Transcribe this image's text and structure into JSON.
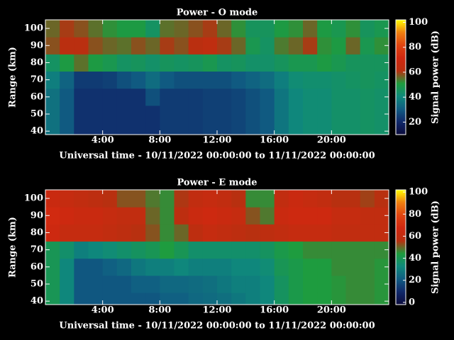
{
  "chart_data": [
    {
      "type": "heatmap",
      "title": "Power - O mode",
      "xlabel": "Universal time - 10/11/2022 00:00:00 to 11/11/2022 00:00:00",
      "ylabel": "Range (km)",
      "colorbar_label": "Signal power (dB)",
      "x": [
        0,
        1,
        2,
        3,
        4,
        5,
        6,
        7,
        8,
        9,
        10,
        11,
        12,
        13,
        14,
        15,
        16,
        17,
        18,
        19,
        20,
        21,
        22,
        23
      ],
      "y": [
        40,
        50,
        60,
        70,
        80,
        90,
        100
      ],
      "xlim": [
        0,
        24
      ],
      "ylim": [
        38,
        105
      ],
      "zlim": [
        10,
        102
      ],
      "xticks": [
        {
          "value": 4,
          "label": "4:00"
        },
        {
          "value": 8,
          "label": "8:00"
        },
        {
          "value": 12,
          "label": "12:00"
        },
        {
          "value": 16,
          "label": "16:00"
        },
        {
          "value": 20,
          "label": "20:00"
        }
      ],
      "yticks": [
        40,
        50,
        60,
        70,
        80,
        90,
        100
      ],
      "zticks": [
        20,
        40,
        60,
        80,
        100
      ],
      "colormap": [
        "#0c0c3c",
        "#10286a",
        "#105c82",
        "#0f8a7c",
        "#1e9c3e",
        "#b83010",
        "#d02810",
        "#e04410",
        "#f08010",
        "#ffff00"
      ],
      "values": [
        [
          35,
          30,
          22,
          22,
          22,
          22,
          22,
          22,
          24,
          24,
          24,
          25,
          25,
          26,
          28,
          30,
          36,
          40,
          42,
          42,
          44,
          44,
          45,
          44
        ],
        [
          35,
          30,
          22,
          22,
          22,
          22,
          22,
          22,
          24,
          24,
          24,
          25,
          25,
          26,
          28,
          30,
          36,
          40,
          42,
          42,
          44,
          44,
          45,
          44
        ],
        [
          35,
          30,
          22,
          22,
          22,
          22,
          22,
          28,
          24,
          24,
          24,
          25,
          25,
          26,
          28,
          30,
          36,
          40,
          42,
          42,
          44,
          44,
          45,
          44
        ],
        [
          38,
          32,
          24,
          24,
          25,
          28,
          30,
          34,
          30,
          28,
          28,
          28,
          28,
          30,
          32,
          34,
          38,
          42,
          43,
          43,
          44,
          45,
          46,
          45
        ],
        [
          45,
          50,
          55,
          50,
          48,
          45,
          46,
          44,
          46,
          45,
          46,
          48,
          45,
          46,
          44,
          44,
          46,
          48,
          48,
          50,
          48,
          46,
          46,
          46
        ],
        [
          58,
          62,
          62,
          58,
          56,
          55,
          58,
          56,
          60,
          58,
          62,
          64,
          60,
          56,
          48,
          45,
          54,
          56,
          60,
          52,
          50,
          56,
          48,
          52
        ],
        [
          56,
          60,
          58,
          55,
          52,
          50,
          50,
          45,
          55,
          56,
          58,
          60,
          56,
          52,
          46,
          46,
          50,
          52,
          56,
          50,
          48,
          52,
          46,
          48
        ]
      ]
    },
    {
      "type": "heatmap",
      "title": "Power - E mode",
      "xlabel": "Universal time - 10/11/2022 00:00:00 to 11/11/2022 00:00:00",
      "ylabel": "Range (km)",
      "colorbar_label": "Signal power (dB)",
      "x": [
        0,
        1,
        2,
        3,
        4,
        5,
        6,
        7,
        8,
        9,
        10,
        11,
        12,
        13,
        14,
        15,
        16,
        17,
        18,
        19,
        20,
        21,
        22,
        23
      ],
      "y": [
        40,
        50,
        60,
        70,
        80,
        90,
        100
      ],
      "xlim": [
        0,
        24
      ],
      "ylim": [
        38,
        105
      ],
      "zlim": [
        -2,
        102
      ],
      "xticks": [
        {
          "value": 4,
          "label": "4:00"
        },
        {
          "value": 8,
          "label": "8:00"
        },
        {
          "value": 12,
          "label": "12:00"
        },
        {
          "value": 16,
          "label": "16:00"
        },
        {
          "value": 20,
          "label": "20:00"
        }
      ],
      "yticks": [
        40,
        50,
        60,
        70,
        80,
        90,
        100
      ],
      "zticks": [
        0,
        20,
        40,
        60,
        80,
        100
      ],
      "colormap": [
        "#0c0c3c",
        "#10286a",
        "#105c82",
        "#0f8a7c",
        "#1e9c3e",
        "#b83010",
        "#d02810",
        "#e04410",
        "#f08010",
        "#ffff00"
      ],
      "values": [
        [
          40,
          32,
          20,
          20,
          20,
          20,
          20,
          20,
          22,
          22,
          24,
          25,
          26,
          28,
          30,
          32,
          38,
          42,
          44,
          44,
          45,
          46,
          46,
          45
        ],
        [
          40,
          32,
          20,
          20,
          20,
          20,
          22,
          22,
          24,
          24,
          25,
          26,
          28,
          30,
          30,
          32,
          38,
          42,
          44,
          44,
          45,
          46,
          46,
          45
        ],
        [
          40,
          32,
          20,
          20,
          22,
          24,
          28,
          30,
          30,
          32,
          30,
          30,
          30,
          32,
          32,
          34,
          40,
          42,
          44,
          44,
          46,
          46,
          46,
          45
        ],
        [
          40,
          36,
          30,
          32,
          34,
          36,
          38,
          40,
          44,
          40,
          36,
          36,
          36,
          36,
          36,
          38,
          42,
          44,
          46,
          46,
          46,
          46,
          46,
          46
        ],
        [
          66,
          62,
          62,
          62,
          60,
          58,
          56,
          52,
          46,
          50,
          58,
          62,
          60,
          58,
          56,
          58,
          60,
          62,
          62,
          62,
          60,
          60,
          60,
          60
        ],
        [
          68,
          66,
          64,
          64,
          62,
          60,
          60,
          50,
          46,
          58,
          64,
          66,
          64,
          62,
          52,
          48,
          64,
          66,
          66,
          66,
          62,
          62,
          60,
          60
        ],
        [
          64,
          62,
          60,
          58,
          56,
          52,
          52,
          48,
          46,
          55,
          60,
          62,
          60,
          56,
          46,
          46,
          60,
          64,
          62,
          60,
          56,
          56,
          54,
          56
        ]
      ]
    }
  ]
}
